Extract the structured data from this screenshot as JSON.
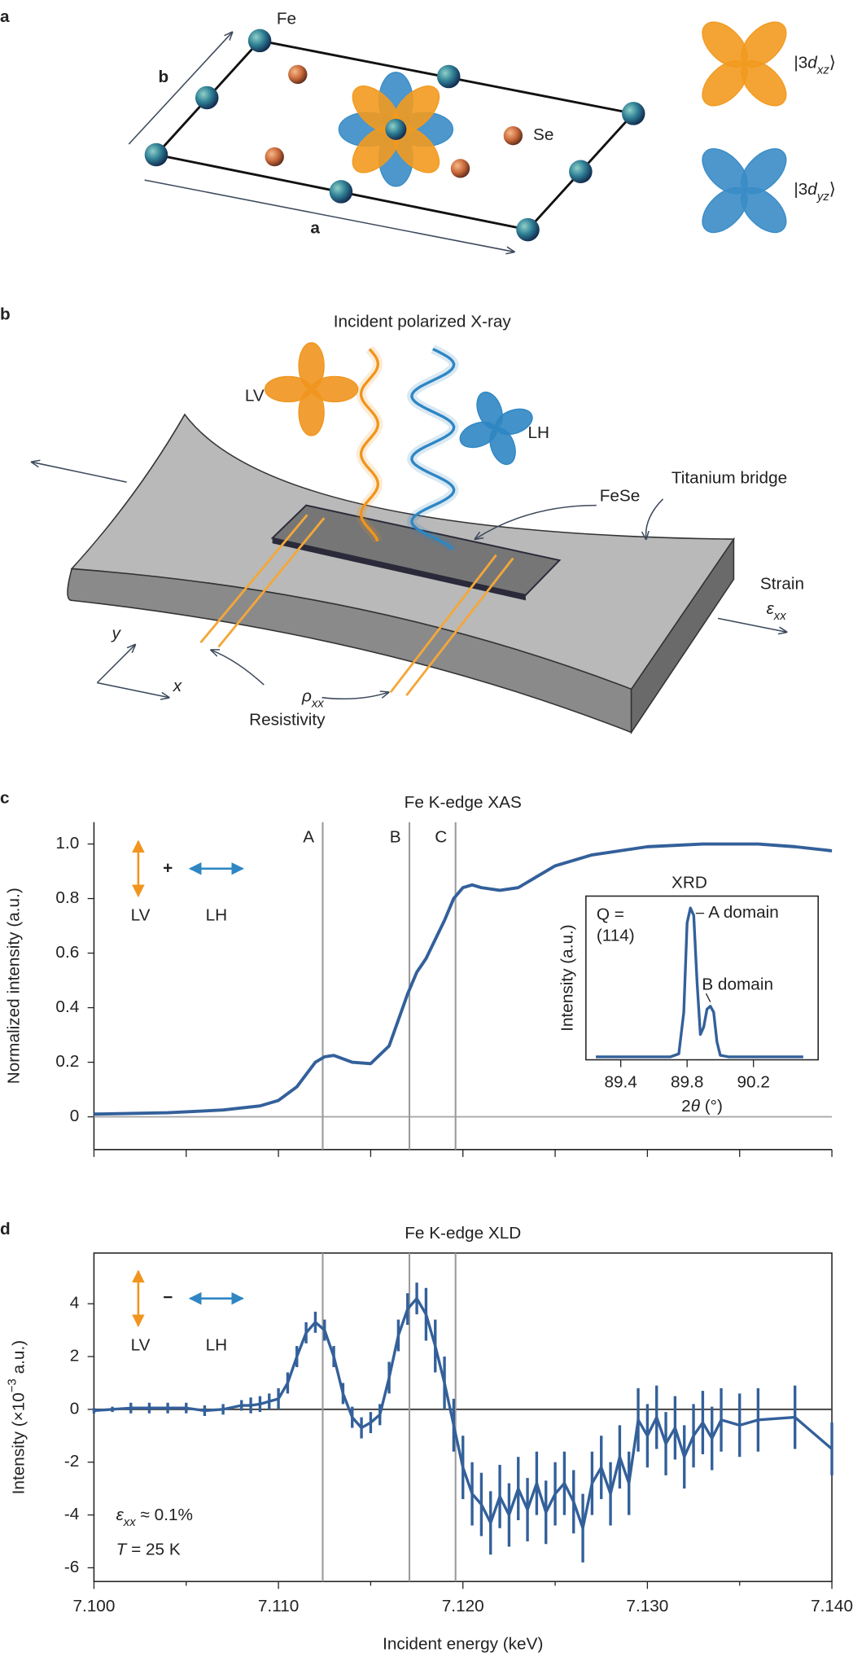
{
  "panel_labels": [
    "a",
    "b",
    "c",
    "d"
  ],
  "panel_a": {
    "fe_label": "Fe",
    "se_label": "Se",
    "axis_b": "b",
    "axis_a": "a",
    "orbitals": [
      {
        "label": [
          "|3",
          "d",
          "xz",
          "⟩"
        ],
        "color": "#f29a1f"
      },
      {
        "label": [
          "|3",
          "d",
          "yz",
          "⟩"
        ],
        "color": "#3a8cc6"
      }
    ]
  },
  "panel_b": {
    "title": "Incident polarized X-ray",
    "lv": "LV",
    "lh": "LH",
    "fese": "FeSe",
    "bridge": "Titanium bridge",
    "strain": "Strain",
    "strain_symbol": [
      "ε",
      "xx"
    ],
    "axis_y": "y",
    "axis_x": "x",
    "rho": [
      "ρ",
      "xx"
    ],
    "resistivity": "Resistivity"
  },
  "chart_data": [
    {
      "type": "line",
      "title": "Fe K-edge XAS",
      "ylabel": "Normalized intensity (a.u.)",
      "color": "#33609a",
      "x": [
        7.1,
        7.104,
        7.107,
        7.109,
        7.11,
        7.111,
        7.112,
        7.1125,
        7.113,
        7.114,
        7.115,
        7.116,
        7.117,
        7.1175,
        7.118,
        7.119,
        7.1195,
        7.12,
        7.1205,
        7.121,
        7.122,
        7.123,
        7.124,
        7.125,
        7.127,
        7.13,
        7.133,
        7.136,
        7.138,
        7.14
      ],
      "values": [
        0.01,
        0.015,
        0.025,
        0.04,
        0.06,
        0.11,
        0.2,
        0.22,
        0.225,
        0.2,
        0.195,
        0.26,
        0.45,
        0.53,
        0.58,
        0.72,
        0.8,
        0.84,
        0.85,
        0.84,
        0.83,
        0.84,
        0.88,
        0.92,
        0.96,
        0.99,
        1.0,
        1.0,
        0.99,
        0.975
      ],
      "xlim": [
        7.1,
        7.14
      ],
      "xticks": [
        7.1,
        7.105,
        7.11,
        7.115,
        7.12,
        7.125,
        7.13,
        7.135,
        7.14
      ],
      "ylim": [
        -0.12,
        1.08
      ],
      "yticks": [
        0,
        0.2,
        0.4,
        0.6,
        0.8,
        {
          "value": 1,
          "label": "1.0"
        }
      ],
      "zero_line": true,
      "markers": [
        {
          "label": "A",
          "x": 7.1124
        },
        {
          "label": "B",
          "x": 7.1171
        },
        {
          "label": "C",
          "x": 7.1196
        }
      ],
      "polarization": {
        "sign": "+",
        "lv": "LV",
        "lh": "LH"
      }
    },
    {
      "type": "line",
      "title": "XRD",
      "xlabel": [
        "2",
        "θ",
        " (°)"
      ],
      "ylabel": "Intensity (a.u.)",
      "color": "#33609a",
      "frame": true,
      "x": [
        89.25,
        89.7,
        89.75,
        89.78,
        89.8,
        89.82,
        89.84,
        89.86,
        89.88,
        89.9,
        89.92,
        89.94,
        89.96,
        89.98,
        90.0,
        90.05,
        90.5
      ],
      "values": [
        0,
        0,
        0.02,
        0.3,
        0.9,
        1.0,
        0.95,
        0.5,
        0.15,
        0.2,
        0.32,
        0.34,
        0.3,
        0.1,
        0.01,
        0,
        0
      ],
      "xlim": [
        89.19,
        90.59
      ],
      "xticks": [
        89.4,
        89.8,
        90.2
      ],
      "ylim": [
        -0.02,
        1.08
      ],
      "q_label": [
        "Q =",
        "(114)"
      ],
      "peak_labels": [
        {
          "label": "A domain",
          "x": 89.82,
          "y": 1.0
        },
        {
          "label": "B domain",
          "x": 89.94,
          "y": 0.34
        }
      ]
    },
    {
      "type": "line",
      "title": "Fe K-edge XLD",
      "xlabel": "Incident energy (keV)",
      "ylabel": [
        "Intensity (×10",
        "−3",
        " a.u.)"
      ],
      "color": "#33609a",
      "frame": true,
      "x": [
        7.1,
        7.101,
        7.102,
        7.103,
        7.104,
        7.105,
        7.106,
        7.107,
        7.108,
        7.1085,
        7.109,
        7.1095,
        7.11,
        7.1105,
        7.111,
        7.1115,
        7.112,
        7.1125,
        7.113,
        7.1135,
        7.114,
        7.1145,
        7.115,
        7.1155,
        7.116,
        7.1165,
        7.117,
        7.1175,
        7.118,
        7.1185,
        7.119,
        7.1195,
        7.12,
        7.1205,
        7.121,
        7.1215,
        7.122,
        7.1225,
        7.123,
        7.1235,
        7.124,
        7.1245,
        7.125,
        7.1255,
        7.126,
        7.1265,
        7.127,
        7.1275,
        7.128,
        7.1285,
        7.129,
        7.1295,
        7.13,
        7.1305,
        7.131,
        7.1315,
        7.132,
        7.1325,
        7.133,
        7.1335,
        7.134,
        7.135,
        7.136,
        7.138,
        7.14
      ],
      "values": [
        -0.05,
        0,
        0.05,
        0.05,
        0.05,
        0.05,
        -0.05,
        0,
        0.15,
        0.15,
        0.2,
        0.3,
        0.4,
        1.0,
        2.0,
        2.9,
        3.3,
        3.0,
        2.0,
        0.6,
        -0.3,
        -0.7,
        -0.5,
        -0.2,
        1.2,
        2.8,
        3.8,
        4.2,
        3.6,
        2.4,
        1.0,
        -0.6,
        -2.2,
        -3.2,
        -3.6,
        -4.3,
        -3.3,
        -4.0,
        -3.0,
        -3.8,
        -2.8,
        -3.9,
        -3.2,
        -2.8,
        -3.5,
        -4.5,
        -2.8,
        -2.2,
        -3.2,
        -1.8,
        -2.8,
        -0.4,
        -1.0,
        -0.3,
        -1.3,
        -0.7,
        -1.8,
        -1.0,
        -0.5,
        -1.1,
        -0.4,
        -0.6,
        -0.4,
        -0.3,
        -1.5
      ],
      "errors": [
        0.1,
        0.1,
        0.2,
        0.2,
        0.2,
        0.2,
        0.2,
        0.2,
        0.2,
        0.3,
        0.3,
        0.3,
        0.4,
        0.4,
        0.4,
        0.4,
        0.4,
        0.4,
        0.4,
        0.4,
        0.4,
        0.4,
        0.4,
        0.4,
        0.6,
        0.6,
        0.6,
        0.6,
        1.0,
        1.0,
        1.0,
        1.0,
        1.2,
        1.2,
        1.2,
        1.2,
        1.2,
        1.2,
        1.2,
        1.2,
        1.2,
        1.2,
        1.2,
        1.2,
        1.2,
        1.3,
        1.2,
        1.2,
        1.2,
        1.2,
        1.2,
        1.2,
        1.2,
        1.2,
        1.2,
        1.2,
        1.2,
        1.2,
        1.2,
        1.2,
        1.2,
        1.2,
        1.2,
        1.2,
        1.0
      ],
      "xlim": [
        7.1,
        7.14
      ],
      "xticks": [
        {
          "value": 7.1,
          "label": "7.100"
        },
        {
          "value": 7.11,
          "label": "7.110"
        },
        {
          "value": 7.12,
          "label": "7.120"
        },
        {
          "value": 7.13,
          "label": "7.130"
        },
        {
          "value": 7.14,
          "label": "7.140"
        }
      ],
      "xminorticks": [
        7.105,
        7.115,
        7.125,
        7.135
      ],
      "ylim": [
        -6.52,
        5.92
      ],
      "yticks": [
        -6,
        -4,
        -2,
        0,
        2,
        4
      ],
      "zero_line": true,
      "markers": [
        {
          "x": 7.1124
        },
        {
          "x": 7.1171
        },
        {
          "x": 7.1196
        }
      ],
      "polarization": {
        "sign": "−",
        "lv": "LV",
        "lh": "LH"
      },
      "annotations": [
        [
          "ε",
          "xx",
          " ≈ 0.1%"
        ],
        [
          "T",
          " = 25 K"
        ]
      ]
    }
  ]
}
